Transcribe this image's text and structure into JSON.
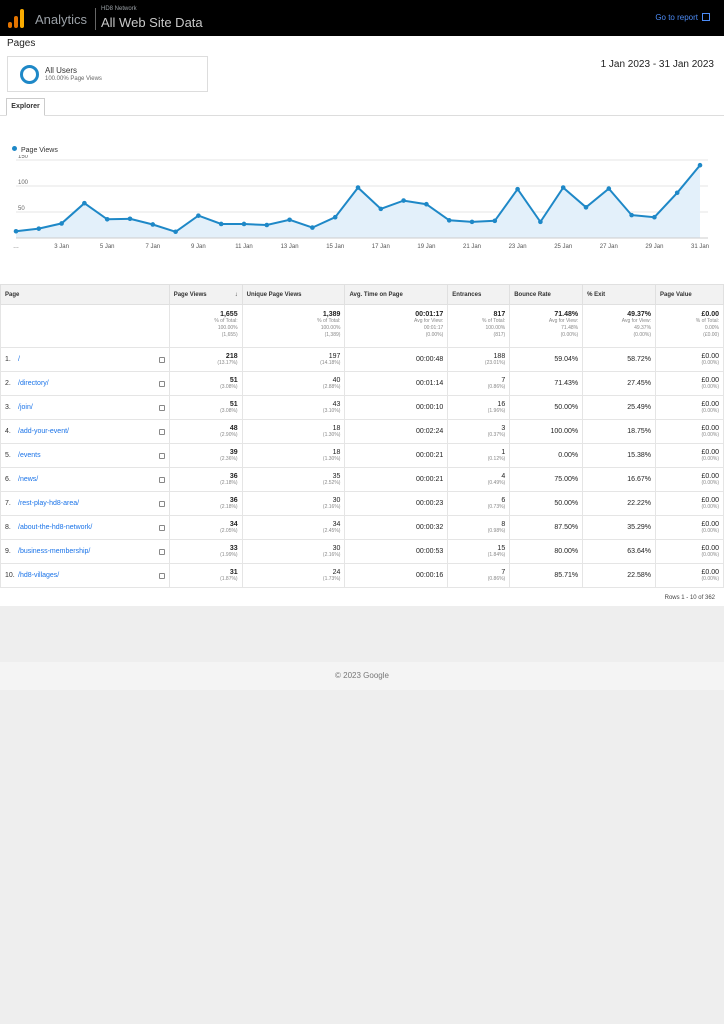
{
  "header": {
    "brand": "Analytics",
    "account": "HD8 Network",
    "property": "All Web Site Data",
    "go_to_report": "Go to report",
    "logo_colors": [
      "#f9ab00",
      "#e37400",
      "#e37400"
    ]
  },
  "page_title": "Pages",
  "segment": {
    "name": "All Users",
    "sub": "100.00% Page Views"
  },
  "date_range": "1 Jan 2023 - 31 Jan 2023",
  "tab_label": "Explorer",
  "chart_data": {
    "type": "line",
    "series": [
      {
        "name": "Page Views",
        "color": "#1e88c7",
        "values": [
          13,
          18,
          28,
          67,
          36,
          37,
          26,
          12,
          43,
          27,
          27,
          25,
          35,
          20,
          40,
          97,
          56,
          72,
          65,
          34,
          31,
          33,
          94,
          31,
          97,
          59,
          95,
          44,
          40,
          87,
          140
        ]
      }
    ],
    "x_tick_labels": [
      "…",
      "3 Jan",
      "5 Jan",
      "7 Jan",
      "9 Jan",
      "11 Jan",
      "13 Jan",
      "15 Jan",
      "17 Jan",
      "19 Jan",
      "21 Jan",
      "23 Jan",
      "25 Jan",
      "27 Jan",
      "29 Jan",
      "31 Jan"
    ],
    "y_tick_labels": [
      "150",
      "100",
      "50"
    ],
    "ylim": [
      0,
      150
    ],
    "grid": true
  },
  "table": {
    "columns": [
      "Page",
      "Page Views",
      "Unique Page Views",
      "Avg. Time on Page",
      "Entrances",
      "Bounce Rate",
      "% Exit",
      "Page Value"
    ],
    "totals": [
      {
        "main": "1,655",
        "l1": "% of Total:",
        "l2": "100.00%",
        "l3": "(1,655)"
      },
      {
        "main": "1,389",
        "l1": "% of Total:",
        "l2": "100.00%",
        "l3": "(1,389)"
      },
      {
        "main": "00:01:17",
        "l1": "Avg for View:",
        "l2": "00:01:17",
        "l3": "(0.00%)"
      },
      {
        "main": "817",
        "l1": "% of Total:",
        "l2": "100.00%",
        "l3": "(817)"
      },
      {
        "main": "71.48%",
        "l1": "Avg for View:",
        "l2": "71.48%",
        "l3": "(0.00%)"
      },
      {
        "main": "49.37%",
        "l1": "Avg for View:",
        "l2": "49.37%",
        "l3": "(0.00%)"
      },
      {
        "main": "£0.00",
        "l1": "% of Total:",
        "l2": "0.00%",
        "l3": "(£0.00)"
      }
    ],
    "rows": [
      {
        "n": "1.",
        "page": "/",
        "pv": "218",
        "pvp": "(13.17%)",
        "upv": "197",
        "upvp": "(14.18%)",
        "time": "00:00:48",
        "ent": "188",
        "entp": "(23.01%)",
        "bounce": "59.04%",
        "exit": "58.72%",
        "value": "£0.00",
        "valp": "(0.00%)"
      },
      {
        "n": "2.",
        "page": "/directory/",
        "pv": "51",
        "pvp": "(3.08%)",
        "upv": "40",
        "upvp": "(2.88%)",
        "time": "00:01:14",
        "ent": "7",
        "entp": "(0.86%)",
        "bounce": "71.43%",
        "exit": "27.45%",
        "value": "£0.00",
        "valp": "(0.00%)"
      },
      {
        "n": "3.",
        "page": "/join/",
        "pv": "51",
        "pvp": "(3.08%)",
        "upv": "43",
        "upvp": "(3.10%)",
        "time": "00:00:10",
        "ent": "16",
        "entp": "(1.96%)",
        "bounce": "50.00%",
        "exit": "25.49%",
        "value": "£0.00",
        "valp": "(0.00%)"
      },
      {
        "n": "4.",
        "page": "/add-your-event/",
        "pv": "48",
        "pvp": "(2.90%)",
        "upv": "18",
        "upvp": "(1.30%)",
        "time": "00:02:24",
        "ent": "3",
        "entp": "(0.37%)",
        "bounce": "100.00%",
        "exit": "18.75%",
        "value": "£0.00",
        "valp": "(0.00%)"
      },
      {
        "n": "5.",
        "page": "/events",
        "pv": "39",
        "pvp": "(2.36%)",
        "upv": "18",
        "upvp": "(1.30%)",
        "time": "00:00:21",
        "ent": "1",
        "entp": "(0.12%)",
        "bounce": "0.00%",
        "exit": "15.38%",
        "value": "£0.00",
        "valp": "(0.00%)"
      },
      {
        "n": "6.",
        "page": "/news/",
        "pv": "36",
        "pvp": "(2.18%)",
        "upv": "35",
        "upvp": "(2.52%)",
        "time": "00:00:21",
        "ent": "4",
        "entp": "(0.49%)",
        "bounce": "75.00%",
        "exit": "16.67%",
        "value": "£0.00",
        "valp": "(0.00%)"
      },
      {
        "n": "7.",
        "page": "/rest-play-hd8-area/",
        "pv": "36",
        "pvp": "(2.18%)",
        "upv": "30",
        "upvp": "(2.16%)",
        "time": "00:00:23",
        "ent": "6",
        "entp": "(0.73%)",
        "bounce": "50.00%",
        "exit": "22.22%",
        "value": "£0.00",
        "valp": "(0.00%)"
      },
      {
        "n": "8.",
        "page": "/about-the-hd8-network/",
        "pv": "34",
        "pvp": "(2.05%)",
        "upv": "34",
        "upvp": "(2.45%)",
        "time": "00:00:32",
        "ent": "8",
        "entp": "(0.98%)",
        "bounce": "87.50%",
        "exit": "35.29%",
        "value": "£0.00",
        "valp": "(0.00%)"
      },
      {
        "n": "9.",
        "page": "/business-membership/",
        "pv": "33",
        "pvp": "(1.99%)",
        "upv": "30",
        "upvp": "(2.16%)",
        "time": "00:00:53",
        "ent": "15",
        "entp": "(1.84%)",
        "bounce": "80.00%",
        "exit": "63.64%",
        "value": "£0.00",
        "valp": "(0.00%)"
      },
      {
        "n": "10.",
        "page": "/hd8-villages/",
        "pv": "31",
        "pvp": "(1.87%)",
        "upv": "24",
        "upvp": "(1.73%)",
        "time": "00:00:16",
        "ent": "7",
        "entp": "(0.86%)",
        "bounce": "85.71%",
        "exit": "22.58%",
        "value": "£0.00",
        "valp": "(0.00%)"
      }
    ],
    "rows_info": "Rows 1 - 10 of 362"
  },
  "footer": "© 2023 Google"
}
